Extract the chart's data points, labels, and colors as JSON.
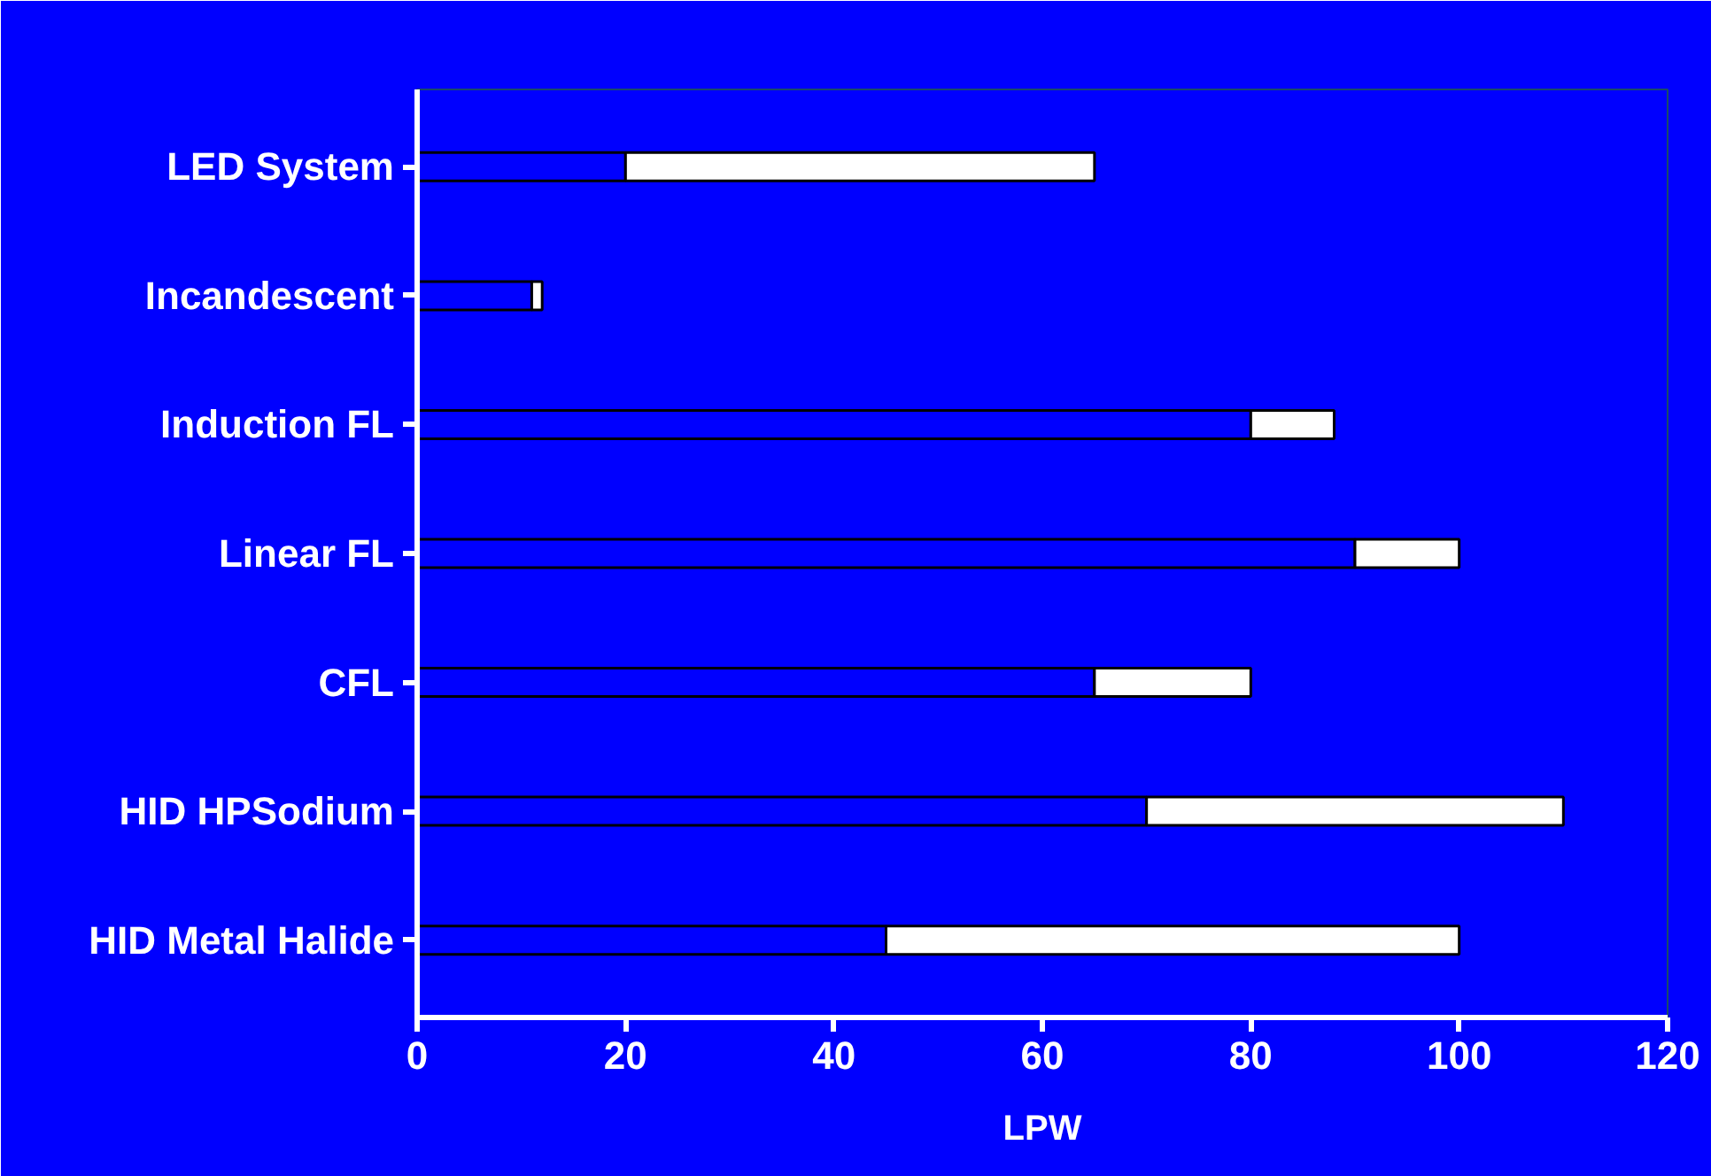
{
  "chart_data": {
    "type": "bar",
    "orientation": "horizontal",
    "stacked": true,
    "xlabel": "LPW",
    "categories": [
      "LED System",
      "Incandescent",
      "Induction FL",
      "Linear FL",
      "CFL",
      "HID HPSodium",
      "HID Metal Halide"
    ],
    "series": [
      {
        "color": "#0000ff",
        "values": [
          20,
          11,
          80,
          90,
          65,
          70,
          45
        ]
      },
      {
        "color": "#ffffff",
        "values": [
          45,
          1,
          8,
          10,
          15,
          40,
          55
        ]
      }
    ],
    "xlim": [
      0,
      120
    ],
    "xticks": [
      0,
      20,
      40,
      60,
      80,
      100,
      120
    ],
    "grid": false
  }
}
